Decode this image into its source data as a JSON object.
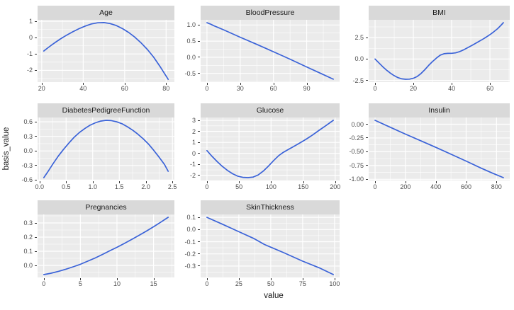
{
  "axis_titles": {
    "x": "value",
    "y": "basis_value"
  },
  "colors": {
    "line": "#3b63d8",
    "panel_background": "#ebebeb",
    "strip_background": "#d9d9d9",
    "gridline_major": "#ffffff",
    "gridline_minor": "#ffffff",
    "tick_label": "#4d4d4d",
    "tick_mark": "#333333",
    "strip_text": "#1a1a1a",
    "axis_title": "#1a1a1a"
  },
  "chart_data": {
    "type": "line",
    "layout": {
      "ncol": 3,
      "nrow": 3,
      "scales": "free",
      "grid": "on",
      "legend": "none"
    },
    "xlabel": "value",
    "ylabel": "basis_value",
    "facets": [
      {
        "title": "Age",
        "xlim": [
          18,
          84
        ],
        "ylim": [
          -2.72,
          1.09
        ],
        "x_ticks": {
          "values": [
            20,
            40,
            60,
            80
          ],
          "labels": [
            "20",
            "40",
            "60",
            "80"
          ]
        },
        "y_ticks": {
          "values": [
            1,
            0,
            -1,
            -2
          ],
          "labels": [
            "1",
            "0",
            "-1",
            "-2"
          ]
        },
        "x": [
          21,
          23,
          25,
          27,
          29,
          32,
          35,
          38,
          41,
          44,
          47,
          50,
          53,
          56,
          59,
          62,
          65,
          68,
          71,
          74,
          77,
          81
        ],
        "y": [
          -0.82,
          -0.62,
          -0.43,
          -0.25,
          -0.08,
          0.15,
          0.36,
          0.55,
          0.71,
          0.84,
          0.91,
          0.92,
          0.86,
          0.74,
          0.55,
          0.31,
          0.02,
          -0.33,
          -0.73,
          -1.2,
          -1.75,
          -2.55
        ]
      },
      {
        "title": "BloodPressure",
        "xlim": [
          -5.7,
          119.7
        ],
        "ylim": [
          -0.77,
          1.16
        ],
        "x_ticks": {
          "values": [
            0,
            30,
            60,
            90
          ],
          "labels": [
            "0",
            "30",
            "60",
            "90"
          ]
        },
        "y_ticks": {
          "values": [
            1.0,
            0.5,
            0.0,
            -0.5
          ],
          "labels": [
            "1.0",
            "0.5",
            "0.0",
            "-0.5"
          ]
        },
        "x": [
          0,
          3,
          6,
          15,
          30,
          45,
          60,
          75,
          90,
          102,
          114
        ],
        "y": [
          1.07,
          1.03,
          0.98,
          0.85,
          0.62,
          0.4,
          0.17,
          -0.06,
          -0.3,
          -0.49,
          -0.68
        ]
      },
      {
        "title": "BMI",
        "xlim": [
          -3.35,
          70.35
        ],
        "ylim": [
          -2.7,
          4.58
        ],
        "x_ticks": {
          "values": [
            0,
            20,
            40,
            60
          ],
          "labels": [
            "0",
            "20",
            "40",
            "60"
          ]
        },
        "y_ticks": {
          "values": [
            2.5,
            0.0,
            -2.5
          ],
          "labels": [
            "2.5",
            "0.0",
            "-2.5"
          ]
        },
        "x": [
          0,
          2,
          4,
          6,
          8,
          10,
          12,
          14,
          16,
          18,
          20,
          22,
          24,
          26,
          28,
          30,
          32,
          34,
          36,
          38,
          40,
          42,
          44,
          46,
          48,
          50,
          52,
          54,
          56,
          58,
          60,
          62,
          64,
          66,
          67
        ],
        "y": [
          0,
          -0.45,
          -0.9,
          -1.3,
          -1.65,
          -1.95,
          -2.18,
          -2.32,
          -2.37,
          -2.35,
          -2.25,
          -2.05,
          -1.7,
          -1.25,
          -0.75,
          -0.3,
          0.1,
          0.45,
          0.62,
          0.66,
          0.67,
          0.72,
          0.85,
          1.05,
          1.28,
          1.52,
          1.77,
          2.02,
          2.28,
          2.55,
          2.85,
          3.18,
          3.55,
          4.0,
          4.25
        ]
      },
      {
        "title": "DiabetesPedigreeFunction",
        "xlim": [
          -0.037,
          2.537
        ],
        "ylim": [
          -0.609,
          0.689
        ],
        "x_ticks": {
          "values": [
            0.0,
            0.5,
            1.0,
            1.5,
            2.0,
            2.5
          ],
          "labels": [
            "0.0",
            "0.5",
            "1.0",
            "1.5",
            "2.0",
            "2.5"
          ]
        },
        "y_ticks": {
          "values": [
            0.6,
            0.3,
            0.0,
            -0.3,
            -0.6
          ],
          "labels": [
            "0.6",
            "0.3",
            "0.0",
            "-0.3",
            "-0.6"
          ]
        },
        "x": [
          0.08,
          0.15,
          0.25,
          0.35,
          0.45,
          0.55,
          0.65,
          0.75,
          0.85,
          0.95,
          1.05,
          1.15,
          1.25,
          1.35,
          1.45,
          1.55,
          1.65,
          1.75,
          1.85,
          1.95,
          2.05,
          2.15,
          2.25,
          2.35,
          2.42
        ],
        "y": [
          -0.55,
          -0.44,
          -0.27,
          -0.11,
          0.03,
          0.16,
          0.28,
          0.38,
          0.46,
          0.53,
          0.58,
          0.615,
          0.63,
          0.625,
          0.6,
          0.56,
          0.5,
          0.43,
          0.345,
          0.25,
          0.14,
          0.01,
          -0.13,
          -0.28,
          -0.42
        ]
      },
      {
        "title": "Glucose",
        "xlim": [
          -9.85,
          206.85
        ],
        "ylim": [
          -2.46,
          3.26
        ],
        "x_ticks": {
          "values": [
            0,
            50,
            100,
            150,
            200
          ],
          "labels": [
            "0",
            "50",
            "100",
            "150",
            "200"
          ]
        },
        "y_ticks": {
          "values": [
            3,
            2,
            1,
            0,
            -1,
            -2
          ],
          "labels": [
            "3",
            "2",
            "1",
            "0",
            "-1",
            "-2"
          ]
        },
        "x": [
          0,
          8,
          16,
          24,
          32,
          40,
          48,
          56,
          64,
          72,
          80,
          88,
          96,
          104,
          112,
          118,
          125,
          135,
          145,
          155,
          165,
          175,
          185,
          197
        ],
        "y": [
          0.25,
          -0.27,
          -0.75,
          -1.18,
          -1.55,
          -1.85,
          -2.07,
          -2.18,
          -2.2,
          -2.15,
          -1.95,
          -1.6,
          -1.15,
          -0.65,
          -0.2,
          0.05,
          0.3,
          0.62,
          0.95,
          1.3,
          1.68,
          2.1,
          2.5,
          3.0
        ]
      },
      {
        "title": "Insulin",
        "xlim": [
          -42.25,
          887.25
        ],
        "ylim": [
          -1.022,
          0.122
        ],
        "x_ticks": {
          "values": [
            0,
            200,
            400,
            600,
            800
          ],
          "labels": [
            "0",
            "200",
            "400",
            "600",
            "800"
          ]
        },
        "y_ticks": {
          "values": [
            0.0,
            -0.25,
            -0.5,
            -0.75,
            -1.0
          ],
          "labels": [
            "0.00",
            "-0.25",
            "-0.50",
            "-0.75",
            "-1.00"
          ]
        },
        "x": [
          0,
          100,
          200,
          300,
          400,
          500,
          600,
          700,
          770,
          845
        ],
        "y": [
          0.07,
          -0.055,
          -0.18,
          -0.3,
          -0.42,
          -0.545,
          -0.67,
          -0.8,
          -0.885,
          -0.97
        ]
      },
      {
        "title": "Pregnancies",
        "xlim": [
          -0.85,
          17.85
        ],
        "ylim": [
          -0.085,
          0.36
        ],
        "x_ticks": {
          "values": [
            0,
            5,
            10,
            15
          ],
          "labels": [
            "0",
            "5",
            "10",
            "15"
          ]
        },
        "y_ticks": {
          "values": [
            0.3,
            0.2,
            0.1,
            0.0
          ],
          "labels": [
            "0.3",
            "0.2",
            "0.1",
            "0.0"
          ]
        },
        "x": [
          0,
          1,
          2,
          3,
          4,
          5,
          6,
          7,
          8,
          9,
          10,
          11,
          12,
          13,
          14,
          15,
          16,
          17
        ],
        "y": [
          -0.065,
          -0.055,
          -0.042,
          -0.027,
          -0.01,
          0.008,
          0.03,
          0.052,
          0.077,
          0.103,
          0.128,
          0.155,
          0.183,
          0.212,
          0.242,
          0.273,
          0.306,
          0.34
        ]
      },
      {
        "title": "SkinThickness",
        "xlim": [
          -4.95,
          103.95
        ],
        "ylim": [
          -0.394,
          0.124
        ],
        "x_ticks": {
          "values": [
            0,
            25,
            50,
            75,
            100
          ],
          "labels": [
            "0",
            "25",
            "50",
            "75",
            "100"
          ]
        },
        "y_ticks": {
          "values": [
            0.1,
            0.0,
            -0.1,
            -0.2,
            -0.3
          ],
          "labels": [
            "0.1",
            "0.0",
            "-0.1",
            "-0.2",
            "-0.3"
          ]
        },
        "x": [
          0,
          12,
          25,
          37,
          45,
          60,
          75,
          88,
          99
        ],
        "y": [
          0.1,
          0.044,
          -0.018,
          -0.075,
          -0.123,
          -0.19,
          -0.26,
          -0.315,
          -0.37
        ]
      }
    ]
  }
}
